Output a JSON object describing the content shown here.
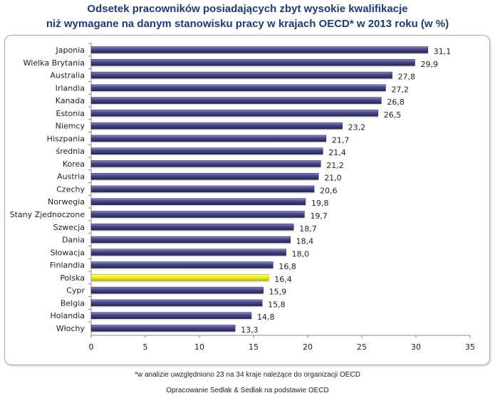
{
  "chart_data": {
    "type": "bar",
    "orientation": "horizontal",
    "title": [
      "Odsetek pracowników posiadających zbyt wysokie kwalifikacje",
      "niż wymagane na danym stanowisku pracy w krajach OECD* w 2013 roku (w %)"
    ],
    "categories": [
      "Japonia",
      "Wielka Brytania",
      "Australia",
      "Irlandia",
      "Kanada",
      "Estonia",
      "Niemcy",
      "Hiszpania",
      "średnia",
      "Korea",
      "Austria",
      "Czechy",
      "Norwegia",
      "Stany Zjednoczone",
      "Szwecja",
      "Dania",
      "Słowacja",
      "Finlandia",
      "Polska",
      "Cypr",
      "Belgia",
      "Holandia",
      "Włochy"
    ],
    "values": [
      31.1,
      29.9,
      27.8,
      27.2,
      26.8,
      26.5,
      23.2,
      21.7,
      21.4,
      21.2,
      21.0,
      20.6,
      19.8,
      19.7,
      18.7,
      18.4,
      18.0,
      16.8,
      16.4,
      15.9,
      15.8,
      14.8,
      13.3
    ],
    "data_labels": [
      "31,1",
      "29,9",
      "27,8",
      "27,2",
      "26,8",
      "26,5",
      "23,2",
      "21,7",
      "21,4",
      "21,2",
      "21,0",
      "20,6",
      "19,8",
      "19,7",
      "18,7",
      "18,4",
      "18,0",
      "16,8",
      "16,4",
      "15,9",
      "15,8",
      "14,8",
      "13,3"
    ],
    "xlim": [
      0,
      35
    ],
    "xticks": [
      "0",
      "5",
      "10",
      "15",
      "20",
      "25",
      "30",
      "35"
    ],
    "grid": false,
    "colors": {
      "bar": "#4a4a8c",
      "highlight": "#ffff33",
      "highlight_category": "Polska"
    }
  },
  "footnote": "*w analizie uwzględniono 23 na 34 kraje należące do organizacji OECD",
  "source": "Opracowanie Sedlak & Sedlak na podstawie OECD"
}
